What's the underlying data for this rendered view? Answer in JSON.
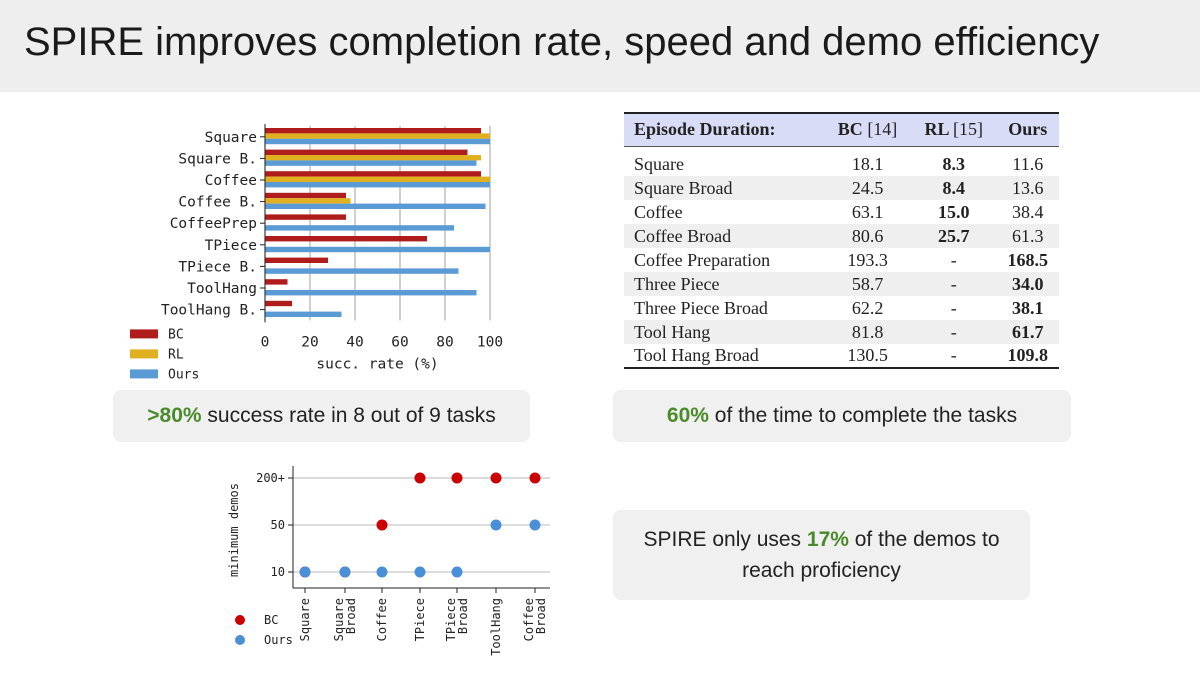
{
  "slide": {
    "title": "SPIRE improves completion rate, speed and demo efficiency"
  },
  "callouts": {
    "success": {
      "highlight": ">80%",
      "text": " success rate in 8 out of 9 tasks"
    },
    "time": {
      "highlight": "60%",
      "text": " of the time to complete the tasks"
    },
    "demos": {
      "prefix": "SPIRE only uses ",
      "highlight": "17%",
      "suffix": " of the demos to reach proficiency"
    }
  },
  "colors": {
    "bc_bar": "#b01c1c",
    "rl_bar": "#e0b020",
    "ours_bar": "#5b9bd5",
    "bc_dot": "#cc0000",
    "ours_dot": "#4a90d9",
    "highlight_green": "#4a8a2a",
    "table_header_bg": "#d9dcf6"
  },
  "duration_table": {
    "headers": {
      "label": "Episode Duration:",
      "bc": "BC",
      "bc_ref": "[14]",
      "rl": "RL",
      "rl_ref": "[15]",
      "ours": "Ours"
    },
    "rows": [
      {
        "task": "Square",
        "bc": "18.1",
        "rl": "8.3",
        "ours": "11.6",
        "bold": "rl"
      },
      {
        "task": "Square Broad",
        "bc": "24.5",
        "rl": "8.4",
        "ours": "13.6",
        "bold": "rl"
      },
      {
        "task": "Coffee",
        "bc": "63.1",
        "rl": "15.0",
        "ours": "38.4",
        "bold": "rl"
      },
      {
        "task": "Coffee Broad",
        "bc": "80.6",
        "rl": "25.7",
        "ours": "61.3",
        "bold": "rl"
      },
      {
        "task": "Coffee Preparation",
        "bc": "193.3",
        "rl": "-",
        "ours": "168.5",
        "bold": "ours"
      },
      {
        "task": "Three Piece",
        "bc": "58.7",
        "rl": "-",
        "ours": "34.0",
        "bold": "ours"
      },
      {
        "task": "Three Piece Broad",
        "bc": "62.2",
        "rl": "-",
        "ours": "38.1",
        "bold": "ours"
      },
      {
        "task": "Tool Hang",
        "bc": "81.8",
        "rl": "-",
        "ours": "61.7",
        "bold": "ours"
      },
      {
        "task": "Tool Hang Broad",
        "bc": "130.5",
        "rl": "-",
        "ours": "109.8",
        "bold": "ours"
      }
    ]
  },
  "chart_data": [
    {
      "type": "bar",
      "orientation": "horizontal",
      "categories": [
        "Square",
        "Square B.",
        "Coffee",
        "Coffee B.",
        "CoffeePrep",
        "TPiece",
        "TPiece B.",
        "ToolHang",
        "ToolHang B."
      ],
      "series": [
        {
          "name": "BC",
          "values": [
            96,
            90,
            96,
            36,
            36,
            72,
            28,
            10,
            12
          ]
        },
        {
          "name": "RL",
          "values": [
            100,
            96,
            100,
            38,
            0,
            0,
            0,
            0,
            0
          ]
        },
        {
          "name": "Ours",
          "values": [
            100,
            94,
            100,
            98,
            84,
            100,
            86,
            94,
            34
          ]
        }
      ],
      "xlabel": "succ. rate (%)",
      "xlim": [
        0,
        100
      ],
      "xticks": [
        0,
        20,
        40,
        60,
        80,
        100
      ],
      "grid": "vertical",
      "legend": "bottom-left"
    },
    {
      "type": "scatter",
      "categories": [
        "Square",
        "Square Broad",
        "Coffee",
        "TPiece",
        "TPiece Broad",
        "ToolHang",
        "Coffee Broad"
      ],
      "y_scale": "categorical",
      "yticks": [
        "10",
        "50",
        "200+"
      ],
      "ylabel": "minimum demos",
      "series": [
        {
          "name": "BC",
          "values": [
            "10",
            "10",
            "50",
            "200+",
            "200+",
            "200+",
            "200+"
          ]
        },
        {
          "name": "Ours",
          "values": [
            "10",
            "10",
            "10",
            "10",
            "10",
            "50",
            "50"
          ]
        }
      ],
      "grid": "horizontal",
      "legend": "bottom-left"
    }
  ]
}
